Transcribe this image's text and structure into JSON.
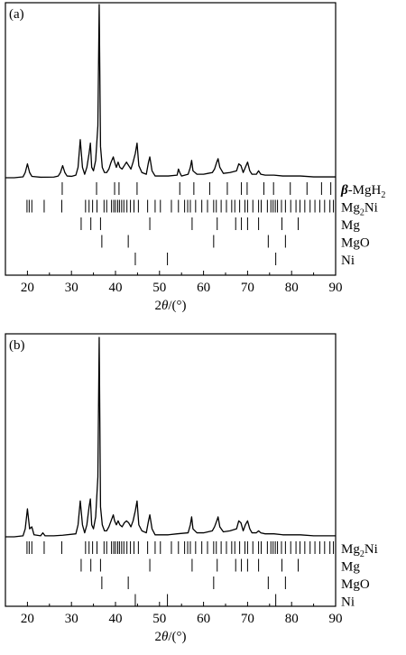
{
  "chart_data": [
    {
      "type": "line",
      "panel_label": "(a)",
      "xlabel": "2θ/(°)",
      "xlabel_parts": {
        "pre": "2",
        "theta": "θ",
        "post": "/(°)"
      },
      "xlim": [
        15,
        90
      ],
      "x_ticks": [
        20,
        30,
        40,
        50,
        60,
        70,
        80,
        90
      ],
      "grid": false,
      "series": [
        {
          "x": [
            15,
            17,
            19,
            19.5,
            20,
            20.5,
            21,
            23,
            26,
            27,
            27.5,
            28,
            28.5,
            29,
            30,
            31,
            31.5,
            32,
            32.5,
            33,
            33.5,
            34,
            34.3,
            34.6,
            35,
            35.5,
            36,
            36.3,
            36.6,
            37,
            37.5,
            38,
            38.5,
            39,
            39.5,
            39.8,
            40.2,
            40.6,
            41,
            41.5,
            42,
            42.5,
            43,
            43.5,
            44,
            44.5,
            44.9,
            45.3,
            46,
            47,
            47.5,
            47.8,
            48.3,
            49,
            52,
            54,
            54.3,
            54.6,
            55,
            56.5,
            57,
            57.3,
            57.6,
            58.5,
            60,
            61,
            62,
            62.5,
            63,
            63.3,
            63.7,
            64.5,
            66,
            67.5,
            68,
            68.5,
            69,
            69.5,
            70,
            70.5,
            71,
            72,
            72.5,
            73,
            74,
            76,
            78,
            80,
            82,
            85,
            88,
            90
          ],
          "y": [
            0,
            0,
            0.5,
            3,
            8,
            3,
            0.8,
            0.3,
            0.4,
            1,
            3,
            7,
            3,
            1,
            0.8,
            1.5,
            6,
            22,
            6,
            2,
            6,
            14,
            20,
            6,
            4,
            10,
            30,
            100,
            18,
            6,
            3,
            3,
            5,
            9,
            12,
            9,
            6,
            9,
            6,
            5,
            7,
            9,
            7,
            5,
            9,
            14,
            20,
            7,
            3,
            2,
            9,
            12,
            4,
            1,
            1,
            1.5,
            5,
            3,
            1,
            2,
            6,
            10,
            4,
            2,
            2,
            2.5,
            3,
            5,
            9,
            11,
            6,
            2.5,
            3,
            4,
            8,
            7,
            3,
            6,
            9,
            4,
            2,
            2,
            4,
            2,
            1.5,
            1.5,
            1,
            1,
            1,
            0.5,
            0.5,
            0.5
          ]
        }
      ],
      "phases": [
        {
          "name": "β-MgH2",
          "label_parts": {
            "pre": "β",
            "main": "-MgH",
            "sub": "2",
            "post": ""
          },
          "positions": [
            27.9,
            35.7,
            39.8,
            40.8,
            44.9,
            54.6,
            57.8,
            61.4,
            65.4,
            68.6,
            69.9,
            73.7,
            75.9,
            79.7,
            83.5,
            86.8,
            88.9
          ]
        },
        {
          "name": "Mg2Ni",
          "label_parts": {
            "pre": "",
            "main": "Mg",
            "sub": "2",
            "post": "Ni"
          },
          "positions": [
            19.9,
            20.4,
            21.0,
            23.8,
            27.8,
            33.2,
            34.0,
            34.8,
            35.8,
            37.4,
            38.0,
            39.1,
            39.6,
            40.0,
            40.5,
            40.9,
            41.4,
            41.9,
            42.6,
            43.4,
            44.2,
            45.2,
            47.3,
            49.0,
            50.2,
            52.7,
            54.3,
            55.7,
            56.4,
            57.0,
            58.2,
            59.6,
            60.9,
            62.3,
            62.9,
            64.0,
            65.2,
            66.4,
            67.1,
            68.2,
            69.4,
            70.0,
            71.2,
            72.5,
            73.1,
            74.5,
            75.3,
            75.8,
            76.3,
            76.8,
            77.7,
            78.6,
            79.8,
            81.0,
            81.9,
            83.0,
            84.2,
            85.3,
            86.4,
            87.5,
            88.7,
            89.5
          ]
        },
        {
          "name": "Mg",
          "label_parts": {
            "pre": "",
            "main": "Mg",
            "sub": "",
            "post": ""
          },
          "positions": [
            32.2,
            34.4,
            36.6,
            47.8,
            57.4,
            63.1,
            67.3,
            68.6,
            70.0,
            72.5,
            77.8,
            81.5
          ]
        },
        {
          "name": "MgO",
          "label_parts": {
            "pre": "",
            "main": "MgO",
            "sub": "",
            "post": ""
          },
          "positions": [
            36.9,
            42.9,
            62.3,
            74.7,
            78.6
          ]
        },
        {
          "name": "Ni",
          "label_parts": {
            "pre": "",
            "main": "Ni",
            "sub": "",
            "post": ""
          },
          "positions": [
            44.5,
            51.8,
            76.4
          ]
        }
      ]
    },
    {
      "type": "line",
      "panel_label": "(b)",
      "xlabel": "2θ/(°)",
      "xlabel_parts": {
        "pre": "2",
        "theta": "θ",
        "post": "/(°)"
      },
      "xlim": [
        15,
        90
      ],
      "x_ticks": [
        20,
        30,
        40,
        50,
        60,
        70,
        80,
        90
      ],
      "grid": false,
      "series": [
        {
          "x": [
            15,
            17,
            19,
            19.5,
            20,
            20.5,
            21,
            21.5,
            23,
            23.5,
            24,
            26,
            28,
            31,
            31.5,
            32,
            32.5,
            33,
            33.5,
            34,
            34.3,
            34.6,
            35,
            35.5,
            36,
            36.3,
            36.6,
            37,
            37.5,
            38,
            38.5,
            39,
            39.5,
            39.8,
            40.2,
            40.6,
            41,
            41.5,
            42,
            42.5,
            43,
            43.5,
            44,
            44.5,
            44.9,
            45.3,
            46,
            47,
            47.5,
            47.8,
            48.3,
            49,
            52,
            54,
            56.5,
            57,
            57.3,
            57.6,
            58.5,
            60,
            61,
            62,
            62.5,
            63,
            63.3,
            63.7,
            64.5,
            66,
            67.5,
            68,
            68.5,
            69,
            69.5,
            70,
            70.5,
            71,
            72,
            72.5,
            73,
            74,
            76,
            78,
            80,
            82,
            85,
            88,
            90
          ],
          "y": [
            0,
            0,
            0.5,
            4,
            14,
            4,
            5,
            1,
            0.5,
            2,
            0.5,
            0.5,
            0.8,
            1.5,
            6,
            18,
            6,
            2,
            6,
            15,
            19,
            6,
            4,
            10,
            30,
            100,
            15,
            6,
            3,
            3,
            5,
            8,
            11,
            8,
            6,
            8,
            6,
            5,
            7,
            8,
            7,
            5,
            8,
            13,
            18,
            6,
            3,
            2,
            8,
            11,
            4,
            1,
            1,
            1.5,
            2,
            6,
            10,
            4,
            2,
            2,
            2.5,
            3,
            5,
            8,
            10,
            5,
            2.5,
            3,
            4,
            8,
            7,
            3,
            6,
            8,
            4,
            2,
            2,
            3,
            2,
            1.5,
            1.5,
            1,
            1,
            1,
            0.5,
            0.5,
            0.5
          ]
        }
      ],
      "phases": [
        {
          "name": "Mg2Ni",
          "label_parts": {
            "pre": "",
            "main": "Mg",
            "sub": "2",
            "post": "Ni"
          },
          "positions": [
            19.9,
            20.4,
            21.0,
            23.8,
            27.8,
            33.2,
            34.0,
            34.8,
            35.8,
            37.4,
            38.0,
            39.1,
            39.6,
            40.0,
            40.5,
            40.9,
            41.4,
            41.9,
            42.6,
            43.4,
            44.2,
            45.2,
            47.3,
            49.0,
            50.2,
            52.7,
            54.3,
            55.7,
            56.4,
            57.0,
            58.2,
            59.6,
            60.9,
            62.3,
            62.9,
            64.0,
            65.2,
            66.4,
            67.1,
            68.2,
            69.4,
            70.0,
            71.2,
            72.5,
            73.1,
            74.5,
            75.3,
            75.8,
            76.3,
            76.8,
            77.7,
            78.6,
            79.8,
            81.0,
            81.9,
            83.0,
            84.2,
            85.3,
            86.4,
            87.5,
            88.7,
            89.5
          ]
        },
        {
          "name": "Mg",
          "label_parts": {
            "pre": "",
            "main": "Mg",
            "sub": "",
            "post": ""
          },
          "positions": [
            32.2,
            34.4,
            36.6,
            47.8,
            57.4,
            63.1,
            67.3,
            68.6,
            70.0,
            72.5,
            77.8,
            81.5
          ]
        },
        {
          "name": "MgO",
          "label_parts": {
            "pre": "",
            "main": "MgO",
            "sub": "",
            "post": ""
          },
          "positions": [
            36.9,
            42.9,
            62.3,
            74.7,
            78.6
          ]
        },
        {
          "name": "Ni",
          "label_parts": {
            "pre": "",
            "main": "Ni",
            "sub": "",
            "post": ""
          },
          "positions": [
            44.5,
            51.8,
            76.4
          ]
        }
      ]
    }
  ]
}
